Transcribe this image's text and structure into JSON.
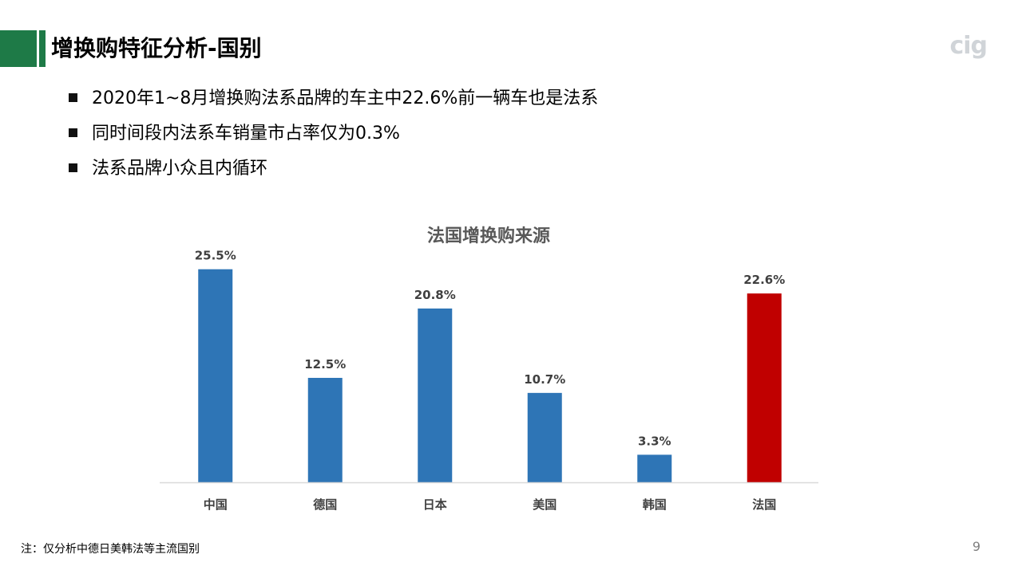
{
  "header": {
    "title": "增换购特征分析-国别",
    "logo_text": "cig",
    "accent_color": "#1e7a47"
  },
  "bullets": [
    "2020年1~8月增换购法系品牌的车主中22.6%前一辆车也是法系",
    "同时间段内法系车销量市占率仅为0.3%",
    "法系品牌小众且内循环"
  ],
  "chart_data": {
    "type": "bar",
    "title": "法国增换购来源",
    "categories": [
      "中国",
      "德国",
      "日本",
      "美国",
      "韩国",
      "法国"
    ],
    "values": [
      25.5,
      12.5,
      20.8,
      10.7,
      3.3,
      22.6
    ],
    "value_labels": [
      "25.5%",
      "12.5%",
      "20.8%",
      "10.7%",
      "3.3%",
      "22.6%"
    ],
    "colors": [
      "#2e75b6",
      "#2e75b6",
      "#2e75b6",
      "#2e75b6",
      "#2e75b6",
      "#c00000"
    ],
    "ylim": [
      0,
      27
    ],
    "grid": false,
    "legend": "none"
  },
  "footer": {
    "note": "注：仅分析中德日美韩法等主流国别",
    "page_number": "9"
  }
}
